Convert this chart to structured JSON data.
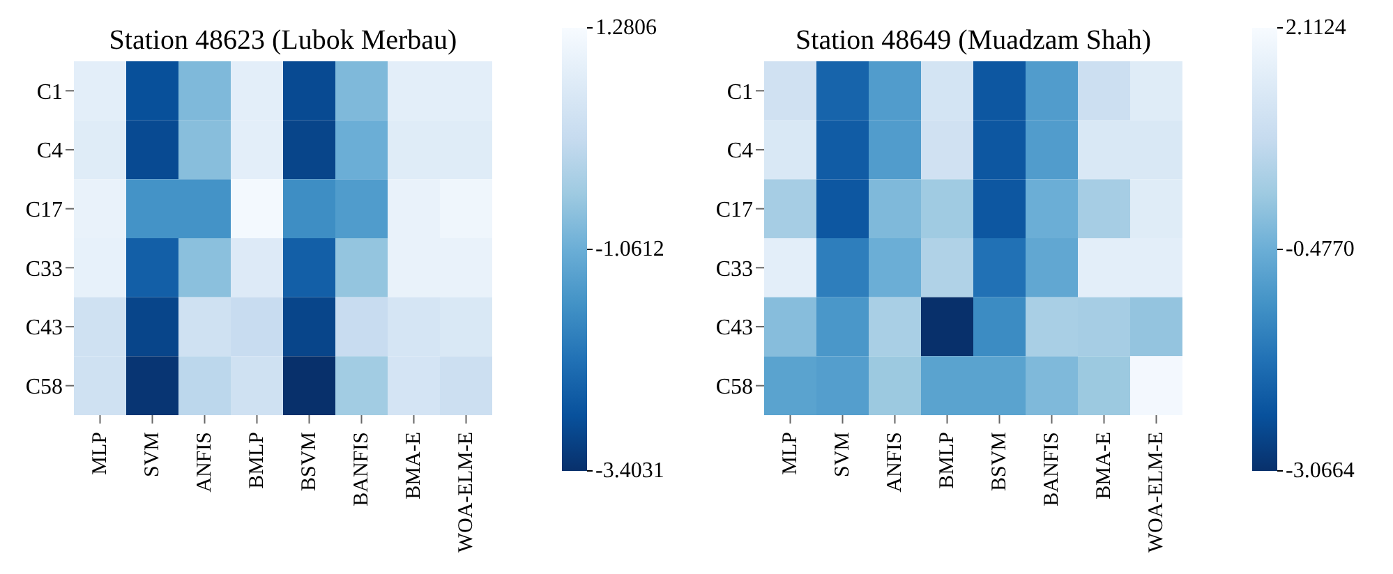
{
  "chart_data": [
    {
      "type": "heatmap",
      "title": "Station 48623 (Lubok Merbau)",
      "categories": [
        "MLP",
        "SVM",
        "ANFIS",
        "BMLP",
        "BSVM",
        "BANFIS",
        "BMA-E",
        "WOA-ELM-E"
      ],
      "y_categories": [
        "C1",
        "C4",
        "C17",
        "C33",
        "C43",
        "C58"
      ],
      "cells": [
        [
          0.81,
          -2.84,
          -0.83,
          0.81,
          -2.94,
          -0.83,
          0.81,
          0.81
        ],
        [
          0.72,
          -2.94,
          -0.73,
          0.81,
          -3.03,
          -1.06,
          0.72,
          0.72
        ],
        [
          0.95,
          -1.62,
          -1.62,
          1.19,
          -1.72,
          -1.44,
          0.95,
          1.09
        ],
        [
          0.91,
          -2.56,
          -0.69,
          0.67,
          -2.56,
          -0.59,
          0.95,
          0.95
        ],
        [
          0.34,
          -3.03,
          0.34,
          0.16,
          -3.03,
          0.16,
          0.48,
          0.58
        ],
        [
          0.34,
          -3.31,
          -0.03,
          0.34,
          -3.4,
          -0.41,
          0.44,
          0.25
        ]
      ],
      "clim": [
        -3.4031,
        1.2806
      ],
      "cticks": [
        -3.4031,
        -1.0612,
        1.2806
      ]
    },
    {
      "type": "heatmap",
      "title": "Station 48649 (Muadzam Shah)",
      "categories": [
        "MLP",
        "SVM",
        "ANFIS",
        "BMLP",
        "BSVM",
        "BANFIS",
        "BMA-E",
        "WOA-ELM-E"
      ],
      "y_categories": [
        "C1",
        "C4",
        "C17",
        "C33",
        "C43",
        "C58"
      ],
      "cells": [
        [
          1.08,
          -2.03,
          -0.89,
          1.18,
          -2.29,
          -0.89,
          0.97,
          1.49
        ],
        [
          1.34,
          -2.19,
          -0.89,
          1.08,
          -2.29,
          -0.89,
          1.34,
          1.34
        ],
        [
          0.3,
          -2.29,
          -0.22,
          0.2,
          -2.29,
          -0.48,
          0.3,
          1.49
        ],
        [
          1.59,
          -1.51,
          -0.48,
          0.46,
          -1.77,
          -0.63,
          1.59,
          1.59
        ],
        [
          -0.12,
          -1.0,
          0.35,
          -3.07,
          -1.25,
          0.35,
          0.3,
          0.04
        ],
        [
          -0.74,
          -0.84,
          0.14,
          -0.74,
          -0.74,
          -0.22,
          0.14,
          2.01
        ]
      ],
      "clim": [
        -3.0664,
        2.1124
      ],
      "cticks": [
        -3.0664,
        {
          "value": -0.477,
          "label": "-0.4770"
        },
        2.1124
      ]
    }
  ]
}
